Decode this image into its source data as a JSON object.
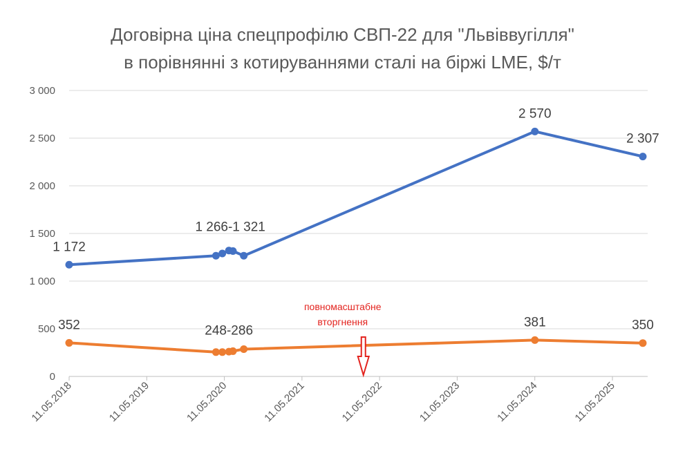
{
  "chart_data": {
    "type": "line",
    "title_line1": "Договірна ціна спецпрофілю СВП-22 для \"Львіввугілля\"",
    "title_line2": "в порівнянні з котируваннями сталі на біржі LME, $/т",
    "ylim": [
      0,
      3000
    ],
    "y_ticks": [
      0,
      500,
      1000,
      1500,
      2000,
      2500,
      3000
    ],
    "y_tick_labels": [
      "0",
      "500",
      "1 000",
      "1 500",
      "2 000",
      "2 500",
      "3 000"
    ],
    "x_tick_labels": [
      "11.05.2018",
      "11.05.2019",
      "11.05.2020",
      "11.05.2021",
      "11.05.2022",
      "11.05.2023",
      "11.05.2024",
      "11.05.2025"
    ],
    "x_range": [
      "2018-05-11",
      "2025-05-11"
    ],
    "grid": true,
    "series": [
      {
        "color": "#4472c4",
        "points": [
          {
            "x": "2018-05-11",
            "y": 1172
          },
          {
            "x": "2020-04-01",
            "y": 1266
          },
          {
            "x": "2020-05-01",
            "y": 1290
          },
          {
            "x": "2020-06-01",
            "y": 1321
          },
          {
            "x": "2020-06-20",
            "y": 1315
          },
          {
            "x": "2020-08-10",
            "y": 1266
          },
          {
            "x": "2024-05-11",
            "y": 2570
          },
          {
            "x": "2025-10-01",
            "y": 2307
          }
        ]
      },
      {
        "color": "#ed7d31",
        "points": [
          {
            "x": "2018-05-11",
            "y": 352
          },
          {
            "x": "2020-04-01",
            "y": 255
          },
          {
            "x": "2020-05-01",
            "y": 255
          },
          {
            "x": "2020-06-01",
            "y": 260
          },
          {
            "x": "2020-06-20",
            "y": 265
          },
          {
            "x": "2020-08-10",
            "y": 286
          },
          {
            "x": "2024-05-11",
            "y": 381
          },
          {
            "x": "2025-10-01",
            "y": 350
          }
        ]
      }
    ],
    "data_labels": [
      {
        "text": "1 172",
        "x": "2018-05-11",
        "y": 1172
      },
      {
        "text": "1 266-1 321",
        "x": "2020-06-01",
        "y": 1321
      },
      {
        "text": "2 570",
        "x": "2024-05-11",
        "y": 2570
      },
      {
        "text": "2 307",
        "x": "2025-10-01",
        "y": 2307
      },
      {
        "text": "352",
        "x": "2018-05-11",
        "y": 352
      },
      {
        "text": "248-286",
        "x": "2020-06-01",
        "y": 286
      },
      {
        "text": "381",
        "x": "2024-05-11",
        "y": 381
      },
      {
        "text": "350",
        "x": "2025-10-01",
        "y": 350
      }
    ],
    "annotation": {
      "line1": "повномасштабне",
      "line2": "вторгнення",
      "x": "2022-02-24",
      "color": "#e3231e"
    }
  }
}
